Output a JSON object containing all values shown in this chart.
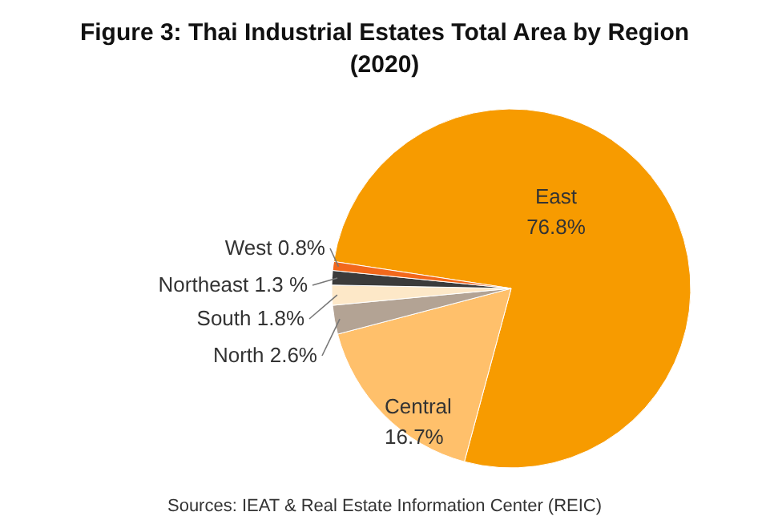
{
  "chart_data": {
    "type": "pie",
    "title": "Figure 3: Thai Industrial Estates Total Area by Region (2020)",
    "categories": [
      "East",
      "Central",
      "North",
      "South",
      "Northeast",
      "West"
    ],
    "values": [
      76.8,
      16.7,
      2.6,
      1.8,
      1.3,
      0.8
    ],
    "value_labels": [
      "76.8%",
      "16.7%",
      "2.6%",
      "1.8%",
      "1.3 %",
      "0.8%"
    ],
    "colors": [
      "#f79b00",
      "#ffc06b",
      "#b3a394",
      "#fde8c8",
      "#3b3b3b",
      "#f2681c"
    ],
    "annotations": [
      "Sources: IEAT & Real Estate Information Center (REIC)"
    ]
  }
}
